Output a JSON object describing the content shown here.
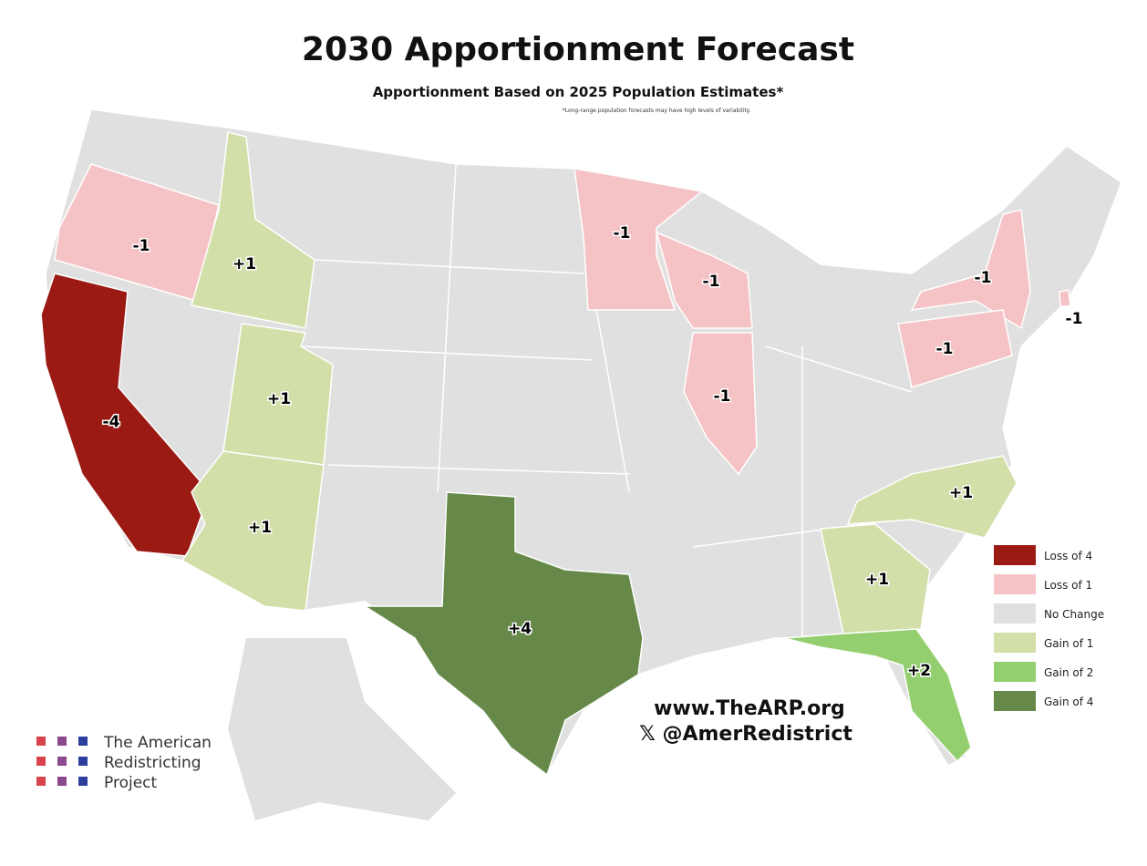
{
  "header": {
    "title": "2030 Apportionment Forecast",
    "subtitle": "Apportionment Based on 2025 Population Estimates*",
    "footnote": "*Long-range population forecasts may have high levels of variability."
  },
  "legend": [
    {
      "label": "Loss of 4",
      "color": "#9b1a14"
    },
    {
      "label": "Loss of 1",
      "color": "#f5c3c5"
    },
    {
      "label": "No Change",
      "color": "#e0e0e0"
    },
    {
      "label": "Gain of 1",
      "color": "#d2dfa9"
    },
    {
      "label": "Gain of 2",
      "color": "#93cf6e"
    },
    {
      "label": "Gain of 4",
      "color": "#66894a"
    }
  ],
  "states": [
    {
      "label": "-1",
      "legend": 1
    },
    {
      "label": "-4",
      "legend": 0
    },
    {
      "label": "+1",
      "legend": 3
    },
    {
      "label": "+1",
      "legend": 3
    },
    {
      "label": "+1",
      "legend": 3
    },
    {
      "label": "+4",
      "legend": 5
    },
    {
      "label": "-1",
      "legend": 1
    },
    {
      "label": "-1",
      "legend": 1
    },
    {
      "label": "-1",
      "legend": 1
    },
    {
      "label": "-1",
      "legend": 1
    },
    {
      "label": "-1",
      "legend": 1
    },
    {
      "label": "-1",
      "legend": 1
    },
    {
      "label": "+1",
      "legend": 3
    },
    {
      "label": "+1",
      "legend": 3
    },
    {
      "label": "+2",
      "legend": 4
    }
  ],
  "credits": {
    "website": "www.TheARP.org",
    "handle": "𝕏 @AmerRedistrict",
    "logo": [
      "The American",
      "Redistricting",
      "Project"
    ]
  }
}
